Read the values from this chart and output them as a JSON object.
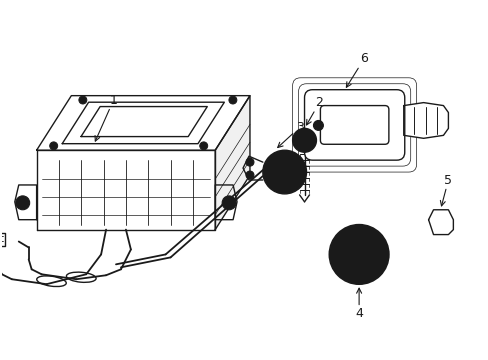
{
  "background_color": "#ffffff",
  "line_color": "#1a1a1a",
  "fig_width": 4.89,
  "fig_height": 3.6,
  "dpi": 100,
  "part1_label": "1",
  "part2_label": "2",
  "part3_label": "3",
  "part4_label": "4",
  "part5_label": "5",
  "part6_label": "6"
}
